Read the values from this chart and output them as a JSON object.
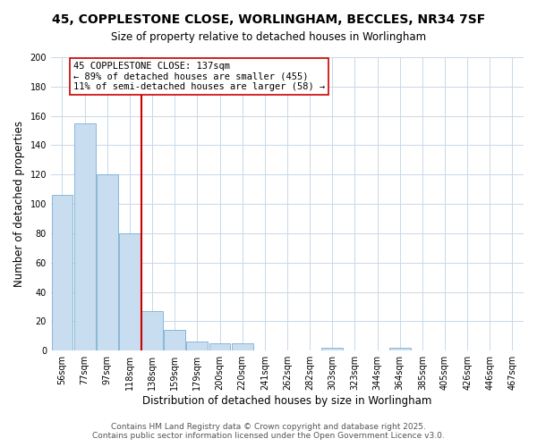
{
  "title1": "45, COPPLESTONE CLOSE, WORLINGHAM, BECCLES, NR34 7SF",
  "title2": "Size of property relative to detached houses in Worlingham",
  "bar_values": [
    106,
    155,
    120,
    80,
    27,
    14,
    6,
    5,
    5,
    0,
    0,
    0,
    2,
    0,
    0,
    2,
    0,
    0,
    0,
    0,
    0
  ],
  "bar_labels": [
    "56sqm",
    "77sqm",
    "97sqm",
    "118sqm",
    "138sqm",
    "159sqm",
    "179sqm",
    "200sqm",
    "220sqm",
    "241sqm",
    "262sqm",
    "282sqm",
    "303sqm",
    "323sqm",
    "344sqm",
    "364sqm",
    "385sqm",
    "405sqm",
    "426sqm",
    "446sqm",
    "467sqm"
  ],
  "bar_color": "#c8ddf0",
  "bar_edge_color": "#7aafd4",
  "ylabel": "Number of detached properties",
  "xlabel": "Distribution of detached houses by size in Worlingham",
  "ylim": [
    0,
    200
  ],
  "yticks": [
    0,
    20,
    40,
    60,
    80,
    100,
    120,
    140,
    160,
    180,
    200
  ],
  "vline_x_index": 4,
  "vline_color": "#cc0000",
  "annotation_title": "45 COPPLESTONE CLOSE: 137sqm",
  "annotation_line1": "← 89% of detached houses are smaller (455)",
  "annotation_line2": "11% of semi-detached houses are larger (58) →",
  "annotation_box_color": "#ffffff",
  "annotation_box_edge": "#cc0000",
  "footer1": "Contains HM Land Registry data © Crown copyright and database right 2025.",
  "footer2": "Contains public sector information licensed under the Open Government Licence v3.0.",
  "bg_color": "#ffffff",
  "grid_color": "#c8d8e8",
  "title1_fontsize": 10,
  "title2_fontsize": 8.5,
  "tick_fontsize": 7,
  "label_fontsize": 8.5,
  "annotation_fontsize": 7.5,
  "footer_fontsize": 6.5
}
